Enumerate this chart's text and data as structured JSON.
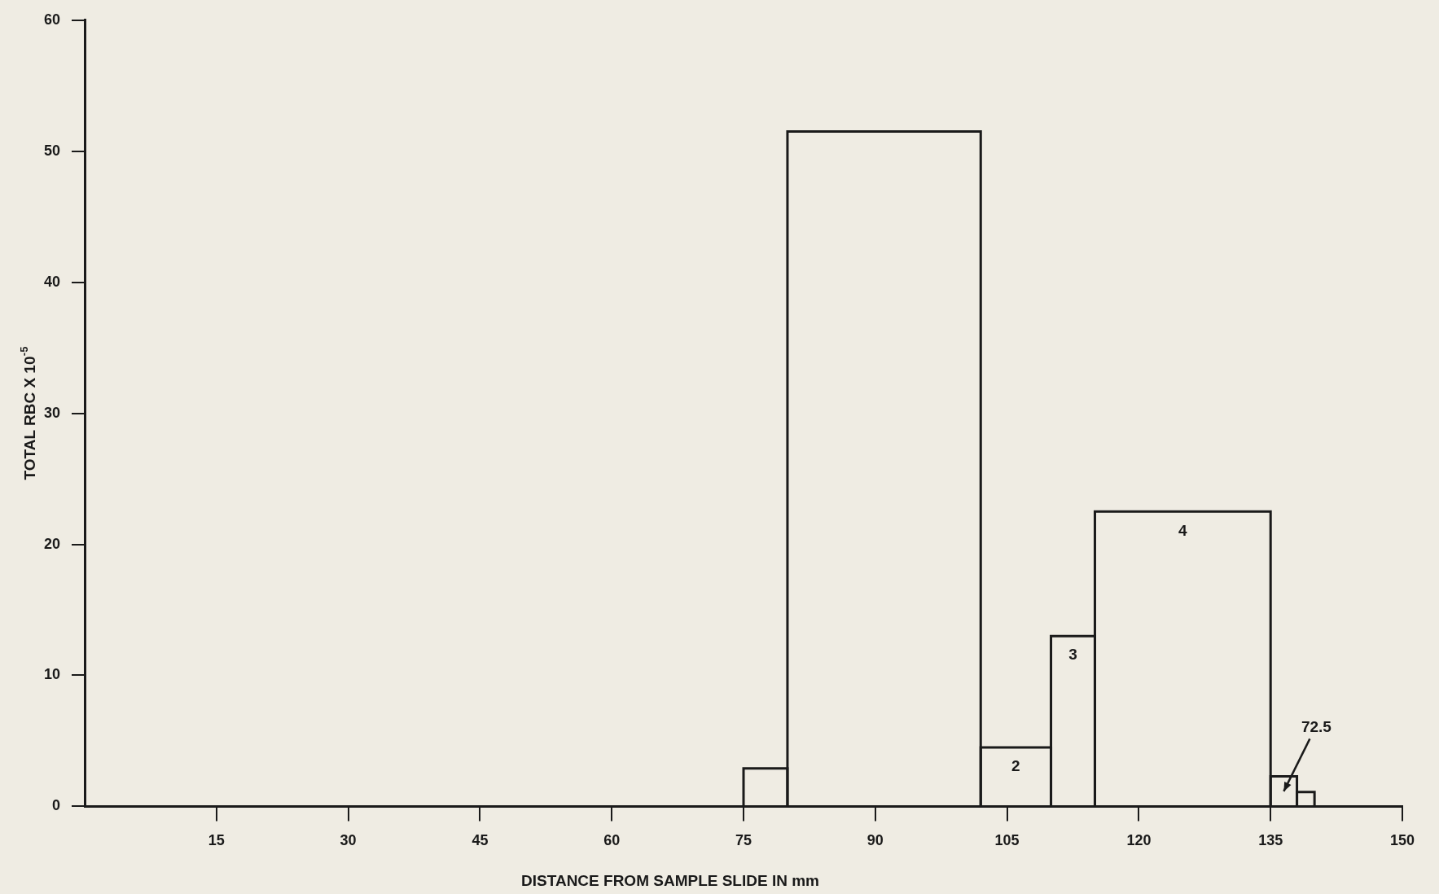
{
  "chart_data": {
    "type": "histogram",
    "xlabel": "DISTANCE FROM SAMPLE SLIDE IN mm",
    "ylabel": "TOTAL RBC X 10$^{-5}$",
    "bins": [
      75,
      80,
      102,
      110,
      115,
      135,
      138,
      140
    ],
    "values": [
      2.9,
      51.5,
      4.5,
      13,
      22.5,
      2.3,
      1.1
    ],
    "color": "#1a1a1a",
    "xlim": [
      0,
      150
    ],
    "xticks": [
      15,
      30,
      45,
      60,
      75,
      90,
      105,
      120,
      135,
      150
    ],
    "ylim": [
      0,
      60
    ],
    "yticks": [
      0,
      10,
      20,
      30,
      40,
      50,
      60
    ],
    "grid": false,
    "legend": false,
    "annotations": [
      {
        "text": "2",
        "x": 106,
        "y": 4.5
      },
      {
        "text": "3",
        "x": 112.5,
        "y": 13
      },
      {
        "text": "4",
        "x": 125,
        "y": 22.5
      },
      {
        "text": "72.5",
        "x": 136.5,
        "y": 2.3
      }
    ]
  }
}
